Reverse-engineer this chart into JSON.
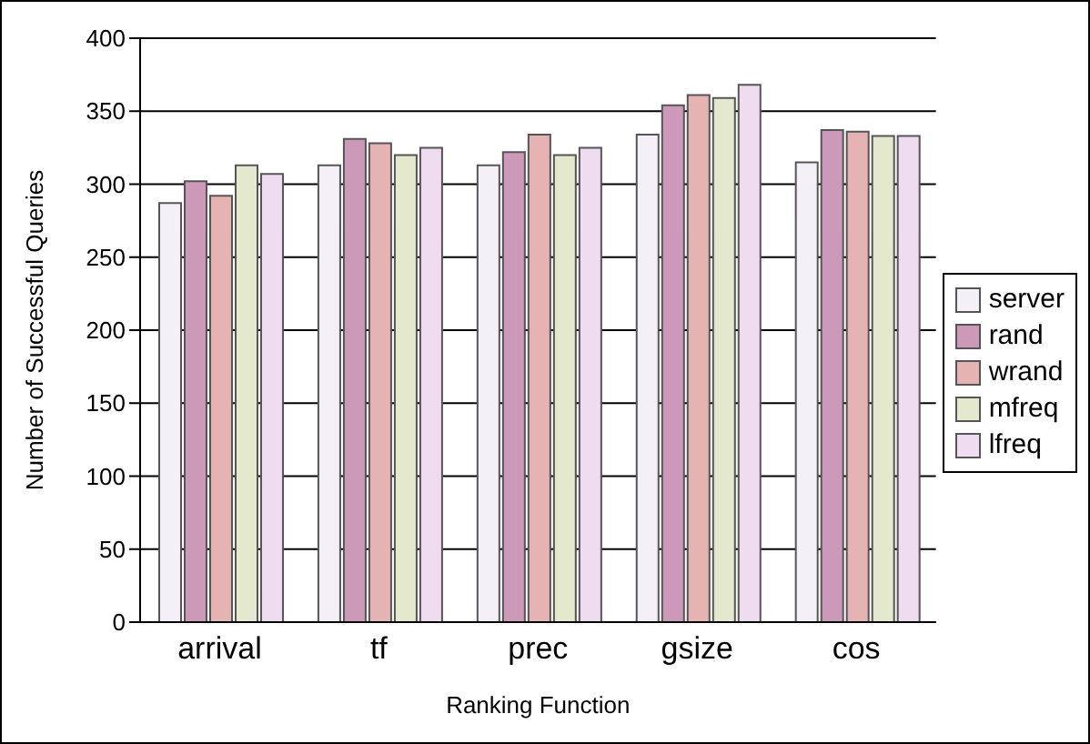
{
  "chart_data": {
    "type": "bar",
    "xlabel": "Ranking Function",
    "ylabel": "Number of Successful Queries",
    "categories": [
      "arrival",
      "tf",
      "prec",
      "gsize",
      "cos"
    ],
    "series": [
      {
        "name": "server",
        "color": "#f4f0f8",
        "values": [
          287,
          313,
          313,
          334,
          315
        ]
      },
      {
        "name": "rand",
        "color": "#cc99b8",
        "values": [
          302,
          331,
          322,
          354,
          337
        ]
      },
      {
        "name": "wrand",
        "color": "#e6b3b3",
        "values": [
          292,
          328,
          334,
          361,
          336
        ]
      },
      {
        "name": "mfreq",
        "color": "#e4e8cc",
        "values": [
          313,
          320,
          320,
          359,
          333
        ]
      },
      {
        "name": "lfreq",
        "color": "#f0dcf0",
        "values": [
          307,
          325,
          325,
          368,
          333
        ]
      }
    ],
    "ylim": [
      0,
      400
    ],
    "yticks": [
      0,
      50,
      100,
      150,
      200,
      250,
      300,
      350,
      400
    ],
    "grid": "y",
    "legend": "right"
  }
}
